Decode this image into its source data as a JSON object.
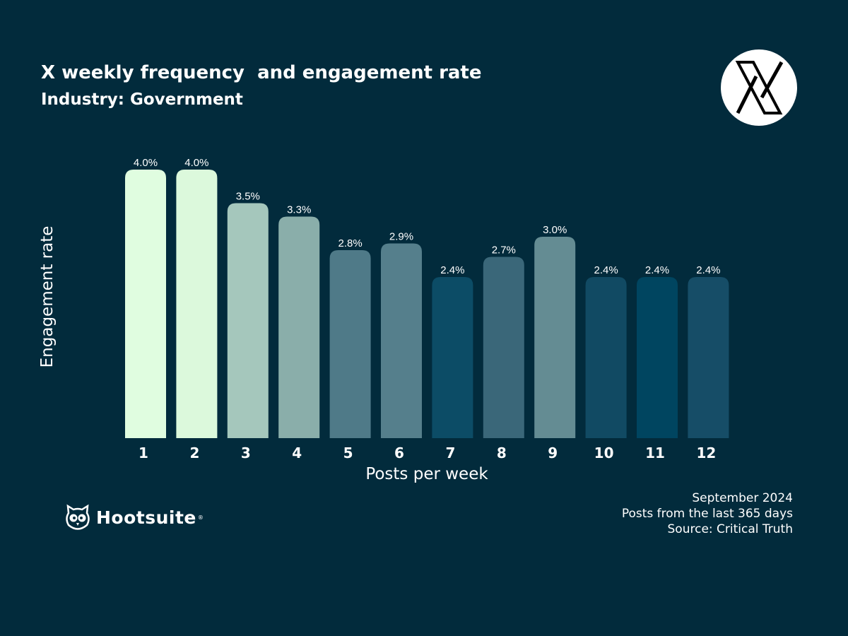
{
  "header": {
    "title": "X weekly frequency  and engagement rate",
    "subtitle": "Industry: Government",
    "platform_icon": "x-logo-icon"
  },
  "chart_data": {
    "type": "bar",
    "title": "X weekly frequency  and engagement rate",
    "subtitle": "Industry: Government",
    "xlabel": "Posts per week",
    "ylabel": "Engagement rate",
    "categories": [
      "1",
      "2",
      "3",
      "4",
      "5",
      "6",
      "7",
      "8",
      "9",
      "10",
      "11",
      "12"
    ],
    "values": [
      4.0,
      4.0,
      3.5,
      3.3,
      2.8,
      2.9,
      2.4,
      2.7,
      3.0,
      2.4,
      2.4,
      2.4
    ],
    "data_labels": [
      "4.0%",
      "4.0%",
      "3.5%",
      "3.3%",
      "2.8%",
      "2.9%",
      "2.4%",
      "2.7%",
      "3.0%",
      "2.4%",
      "2.4%",
      "2.4%"
    ],
    "colors": [
      "#e0fde0",
      "#dcf9dc",
      "#a5c7bc",
      "#8aaeaa",
      "#4f7a88",
      "#557f8c",
      "#0c4c66",
      "#3a6779",
      "#648c93",
      "#114a63",
      "#004560",
      "#164d67"
    ],
    "ylim": [
      0,
      4.0
    ],
    "grid": false,
    "legend": "none"
  },
  "footer": {
    "date": "September 2024",
    "scope": "Posts from the last 365 days",
    "source": "Source: Critical Truth"
  },
  "brand": {
    "name": "Hootsuite",
    "registered": "®",
    "icon": "owl-icon"
  },
  "colors": {
    "background": "#022b3c",
    "text": "#ffffff"
  }
}
